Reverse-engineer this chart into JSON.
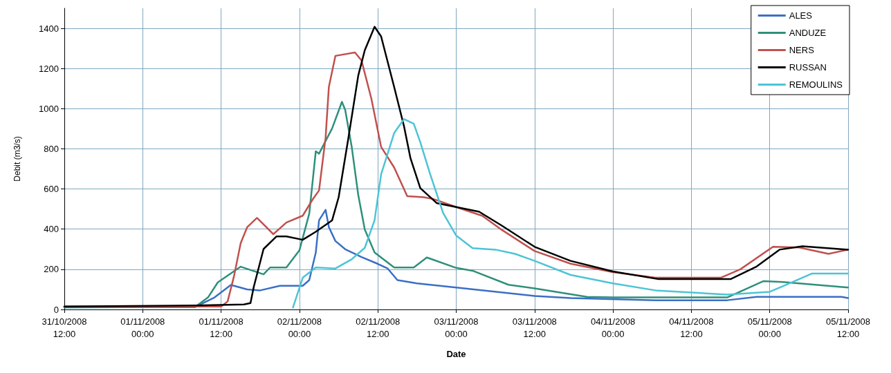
{
  "chart_data": {
    "type": "line",
    "xlabel": "Date",
    "ylabel": "Debit (m3/s)",
    "xlim": [
      "2008-10-31T12:00",
      "2008-11-05T12:00"
    ],
    "xticks": [
      {
        "value": "2008-10-31T12:00",
        "label": "31/10/2008\n12:00"
      },
      {
        "value": "2008-11-01T00:00",
        "label": "01/11/2008\n00:00"
      },
      {
        "value": "2008-11-01T12:00",
        "label": "01/11/2008\n12:00"
      },
      {
        "value": "2008-11-02T00:00",
        "label": "02/11/2008\n00:00"
      },
      {
        "value": "2008-11-02T12:00",
        "label": "02/11/2008\n12:00"
      },
      {
        "value": "2008-11-03T00:00",
        "label": "03/11/2008\n00:00"
      },
      {
        "value": "2008-11-03T12:00",
        "label": "03/11/2008\n12:00"
      },
      {
        "value": "2008-11-04T00:00",
        "label": "04/11/2008\n00:00"
      },
      {
        "value": "2008-11-04T12:00",
        "label": "04/11/2008\n12:00"
      },
      {
        "value": "2008-11-05T00:00",
        "label": "05/11/2008\n00:00"
      },
      {
        "value": "2008-11-05T12:00",
        "label": "05/11/2008\n12:00"
      }
    ],
    "ylim": [
      0,
      1500
    ],
    "yticks": [
      0,
      200,
      400,
      600,
      800,
      1000,
      1200,
      1400
    ],
    "grid": true,
    "legend": "top right",
    "marker": "none",
    "line_style": "solid",
    "series": [
      {
        "name": "ALES",
        "color": "#3a6fc4",
        "x": [
          "2008-10-31T12:00",
          "2008-11-01T08:00",
          "2008-11-01T11:00",
          "2008-11-01T13:30",
          "2008-11-01T16:00",
          "2008-11-01T18:00",
          "2008-11-01T21:00",
          "2008-11-02T00:30",
          "2008-11-02T01:30",
          "2008-11-02T02:30",
          "2008-11-02T03:00",
          "2008-11-02T04:00",
          "2008-11-02T04:30",
          "2008-11-02T05:30",
          "2008-11-02T07:00",
          "2008-11-02T09:30",
          "2008-11-02T12:00",
          "2008-11-02T13:30",
          "2008-11-02T15:00",
          "2008-11-02T18:00",
          "2008-11-03T00:00",
          "2008-11-03T12:00",
          "2008-11-03T17:30",
          "2008-11-04T06:30",
          "2008-11-04T17:30",
          "2008-11-04T22:00",
          "2008-11-05T11:00",
          "2008-11-05T12:00"
        ],
        "values": [
          10,
          12,
          60,
          122,
          100,
          95,
          118,
          118,
          146,
          284,
          444,
          496,
          410,
          341,
          300,
          261,
          227,
          204,
          146,
          130,
          109,
          67,
          57,
          46,
          46,
          63,
          63,
          57
        ]
      },
      {
        "name": "ANDUZE",
        "color": "#2e8f7a",
        "x": [
          "2008-10-31T12:00",
          "2008-11-01T08:00",
          "2008-11-01T10:00",
          "2008-11-01T11:30",
          "2008-11-01T15:00",
          "2008-11-01T18:30",
          "2008-11-01T19:30",
          "2008-11-01T22:00",
          "2008-11-02T00:00",
          "2008-11-02T01:30",
          "2008-11-02T02:30",
          "2008-11-02T03:00",
          "2008-11-02T05:00",
          "2008-11-02T06:30",
          "2008-11-02T07:00",
          "2008-11-02T08:00",
          "2008-11-02T09:00",
          "2008-11-02T10:00",
          "2008-11-02T11:30",
          "2008-11-02T14:30",
          "2008-11-02T17:30",
          "2008-11-02T19:30",
          "2008-11-03T00:00",
          "2008-11-03T02:30",
          "2008-11-03T08:00",
          "2008-11-03T12:00",
          "2008-11-03T20:00",
          "2008-11-04T00:00",
          "2008-11-04T17:30",
          "2008-11-04T23:00",
          "2008-11-05T02:00",
          "2008-11-05T12:00"
        ],
        "values": [
          10,
          12,
          60,
          135,
          213,
          175,
          209,
          209,
          295,
          478,
          788,
          776,
          902,
          1034,
          994,
          810,
          570,
          398,
          284,
          209,
          209,
          259,
          207,
          193,
          123,
          105,
          63,
          60,
          60,
          141,
          137,
          109
        ]
      },
      {
        "name": "NERS",
        "color": "#c0504d",
        "x": [
          "2008-10-31T12:00",
          "2008-11-01T12:00",
          "2008-11-01T13:00",
          "2008-11-01T14:00",
          "2008-11-01T15:00",
          "2008-11-01T16:00",
          "2008-11-01T17:30",
          "2008-11-01T20:00",
          "2008-11-01T22:00",
          "2008-11-02T00:30",
          "2008-11-02T02:00",
          "2008-11-02T03:00",
          "2008-11-02T04:00",
          "2008-11-02T04:30",
          "2008-11-02T05:30",
          "2008-11-02T08:30",
          "2008-11-02T09:30",
          "2008-11-02T11:00",
          "2008-11-02T12:30",
          "2008-11-02T14:30",
          "2008-11-02T16:30",
          "2008-11-02T19:00",
          "2008-11-02T20:30",
          "2008-11-03T00:00",
          "2008-11-03T04:00",
          "2008-11-03T07:00",
          "2008-11-03T12:00",
          "2008-11-03T17:30",
          "2008-11-04T00:00",
          "2008-11-04T06:30",
          "2008-11-04T16:30",
          "2008-11-04T19:30",
          "2008-11-05T00:30",
          "2008-11-05T04:30",
          "2008-11-05T09:00",
          "2008-11-05T12:00"
        ],
        "values": [
          15,
          15,
          40,
          169,
          330,
          410,
          456,
          375,
          433,
          467,
          547,
          593,
          856,
          1108,
          1263,
          1280,
          1240,
          1051,
          810,
          707,
          564,
          559,
          550,
          510,
          466,
          396,
          291,
          228,
          186,
          158,
          158,
          200,
          312,
          309,
          277,
          298
        ]
      },
      {
        "name": "RUSSAN",
        "color": "#000000",
        "x": [
          "2008-10-31T12:00",
          "2008-11-01T08:00",
          "2008-11-01T15:30",
          "2008-11-01T16:30",
          "2008-11-01T17:00",
          "2008-11-01T18:30",
          "2008-11-01T20:30",
          "2008-11-01T22:00",
          "2008-11-02T00:30",
          "2008-11-02T02:30",
          "2008-11-02T05:00",
          "2008-11-02T06:00",
          "2008-11-02T07:30",
          "2008-11-02T09:00",
          "2008-11-02T10:00",
          "2008-11-02T11:30",
          "2008-11-02T12:30",
          "2008-11-02T14:30",
          "2008-11-02T16:00",
          "2008-11-02T17:00",
          "2008-11-02T18:30",
          "2008-11-02T21:00",
          "2008-11-03T00:00",
          "2008-11-03T03:30",
          "2008-11-03T07:00",
          "2008-11-03T12:00",
          "2008-11-03T17:30",
          "2008-11-04T00:00",
          "2008-11-04T07:00",
          "2008-11-04T18:00",
          "2008-11-04T22:00",
          "2008-11-05T01:30",
          "2008-11-05T05:00",
          "2008-11-05T12:00"
        ],
        "values": [
          15,
          20,
          25,
          32,
          112,
          301,
          364,
          364,
          347,
          387,
          444,
          559,
          856,
          1165,
          1291,
          1408,
          1360,
          1108,
          913,
          753,
          604,
          530,
          510,
          487,
          417,
          312,
          242,
          189,
          151,
          151,
          214,
          298,
          315,
          298
        ]
      },
      {
        "name": "REMOULINS",
        "color": "#4cc4d4",
        "x": [
          "2008-11-01T23:00",
          "2008-11-02T00:30",
          "2008-11-02T02:30",
          "2008-11-02T05:30",
          "2008-11-02T08:00",
          "2008-11-02T10:00",
          "2008-11-02T11:30",
          "2008-11-02T12:30",
          "2008-11-02T14:30",
          "2008-11-02T16:00",
          "2008-11-02T17:30",
          "2008-11-02T18:30",
          "2008-11-02T20:00",
          "2008-11-02T22:00",
          "2008-11-03T00:00",
          "2008-11-03T02:30",
          "2008-11-03T06:00",
          "2008-11-03T09:00",
          "2008-11-03T12:00",
          "2008-11-03T17:30",
          "2008-11-04T00:00",
          "2008-11-04T06:30",
          "2008-11-04T17:30",
          "2008-11-05T00:00",
          "2008-11-05T02:00",
          "2008-11-05T06:30",
          "2008-11-05T12:00"
        ],
        "values": [
          9,
          158,
          209,
          204,
          250,
          307,
          444,
          673,
          879,
          948,
          925,
          833,
          675,
          480,
          368,
          305,
          298,
          277,
          242,
          172,
          130,
          95,
          74,
          88,
          116,
          179,
          179
        ]
      }
    ]
  }
}
